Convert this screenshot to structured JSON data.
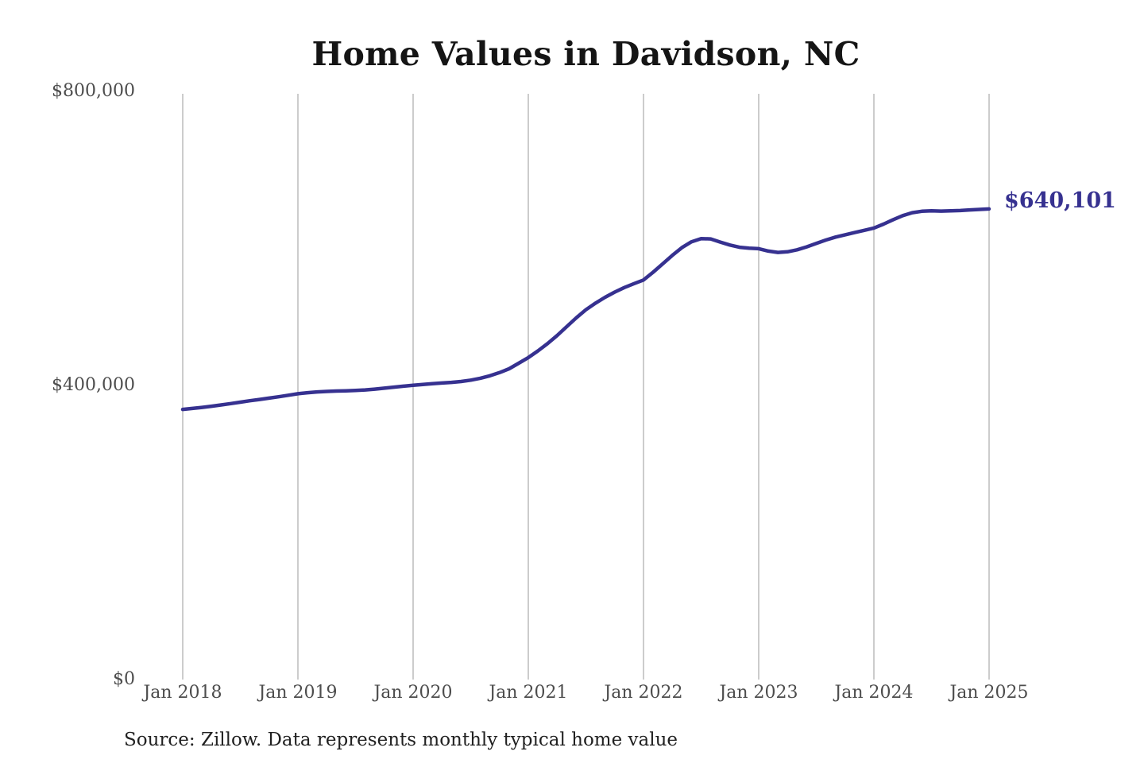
{
  "title": "Home Values in Davidson, NC",
  "annotation": {
    "label": "$640,101"
  },
  "source_note": "Source: Zillow. Data represents monthly typical home value",
  "colors": {
    "background": "#ffffff",
    "line": "#363190",
    "annotation_text": "#363190",
    "grid": "#b7b7b7",
    "axis_text": "#4d4d4d",
    "title_text": "#151515",
    "source_text": "#212121"
  },
  "chart_data": {
    "type": "line",
    "title": "Home Values in Davidson, NC",
    "xlabel": "",
    "ylabel": "",
    "ylim": [
      0,
      800000
    ],
    "grid": "vertical-yearly",
    "legend": "none",
    "x_unit": "month",
    "x_start": "Jan 2018",
    "x_end": "Jan 2025",
    "x_ticks": [
      "Jan 2018",
      "Jan 2019",
      "Jan 2020",
      "Jan 2021",
      "Jan 2022",
      "Jan 2023",
      "Jan 2024",
      "Jan 2025"
    ],
    "y_ticks": [
      {
        "label": "$0",
        "value": 0
      },
      {
        "label": "$400,000",
        "value": 400000
      },
      {
        "label": "$800,000",
        "value": 800000
      }
    ],
    "end_label_value": 640101,
    "series": [
      {
        "name": "Monthly typical home value",
        "values": [
          367500,
          368800,
          370200,
          371800,
          373500,
          375400,
          377300,
          379200,
          381000,
          382800,
          384700,
          386700,
          388800,
          390200,
          391200,
          391900,
          392400,
          392800,
          393300,
          394000,
          395000,
          396300,
          397700,
          399000,
          400300,
          401400,
          402400,
          403300,
          404200,
          405400,
          407200,
          409800,
          413200,
          417500,
          422700,
          430300,
          438000,
          447000,
          457000,
          468000,
          480000,
          492000,
          503000,
          512000,
          520000,
          527000,
          533200,
          538500,
          543500,
          554000,
          565500,
          577000,
          587500,
          595500,
          599800,
          599300,
          595000,
          591000,
          588000,
          586800,
          586000,
          582800,
          581000,
          581800,
          584500,
          588500,
          593200,
          597800,
          601800,
          605000,
          608000,
          611000,
          614200,
          619500,
          625500,
          631000,
          635000,
          637000,
          637500,
          637200,
          637500,
          638000,
          638800,
          639500,
          640101
        ]
      }
    ]
  }
}
